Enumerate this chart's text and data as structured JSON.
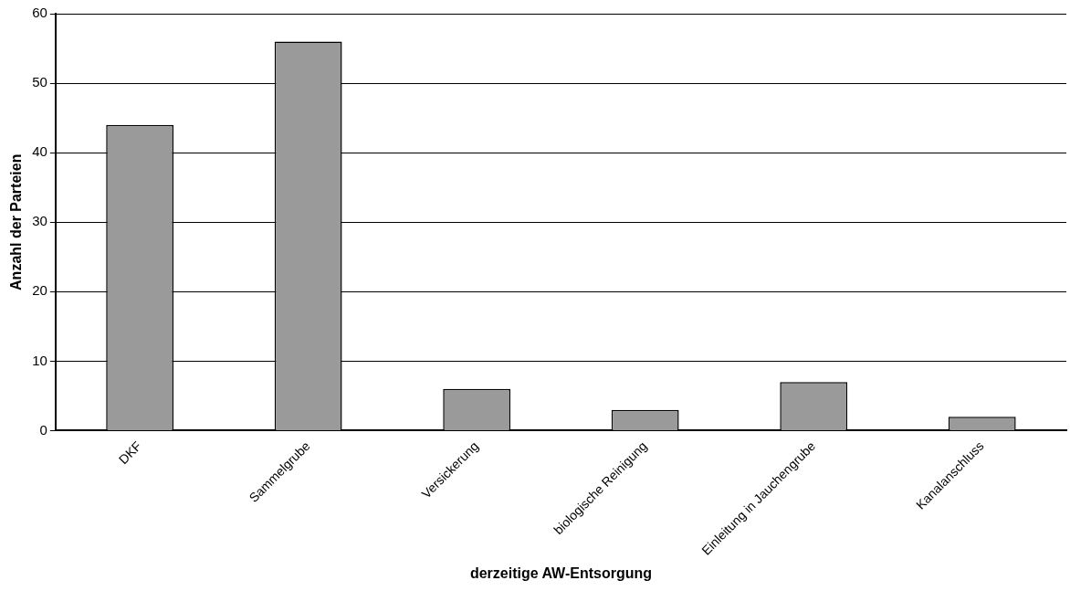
{
  "chart_data": {
    "type": "bar",
    "xlabel": "derzeitige AW-Entsorgung",
    "ylabel": "Anzahl der Parteien",
    "categories": [
      "DKF",
      "Sammelgrube",
      "Versickerung",
      "biologische Reinigung",
      "Einleitung in Jauchengrube",
      "Kanalanschluss"
    ],
    "values": [
      44,
      56,
      6,
      3,
      7,
      2
    ],
    "color": "#9a9a9a",
    "ylim": [
      0,
      60
    ],
    "yticks": [
      0,
      10,
      20,
      30,
      40,
      50,
      60
    ],
    "grid": "y",
    "legend": false
  }
}
